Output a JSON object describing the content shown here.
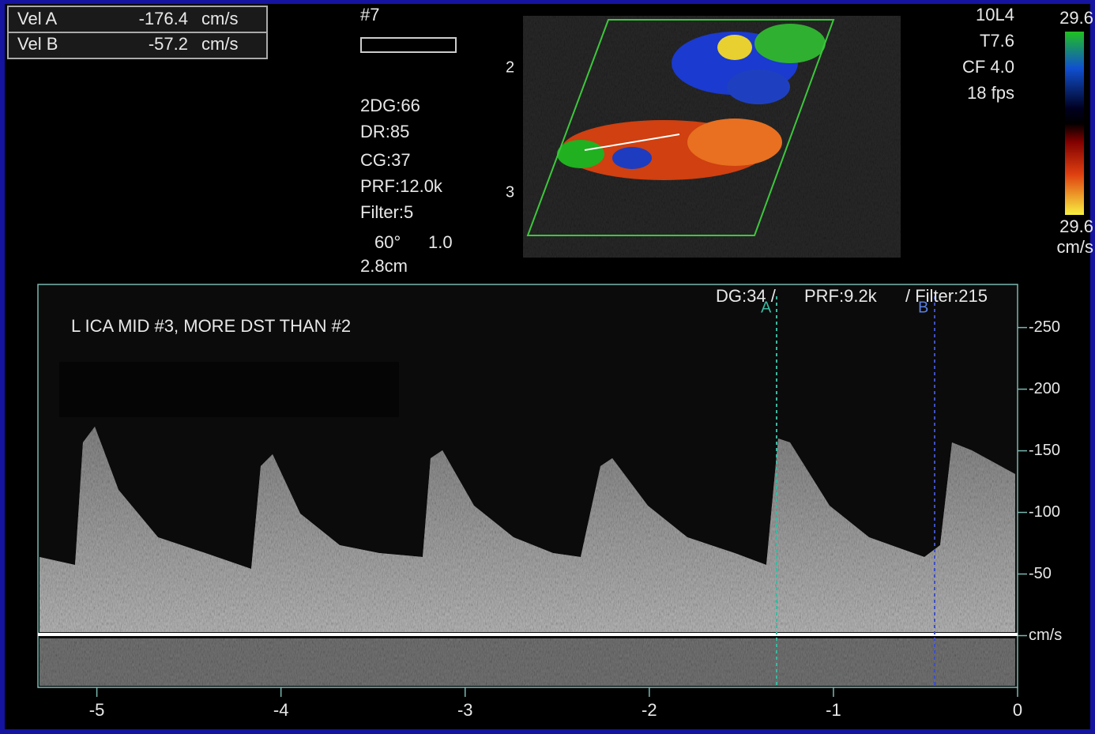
{
  "velocity_box": {
    "rows": [
      {
        "label": "Vel A",
        "value": -176.4,
        "unit": "cm/s"
      },
      {
        "label": "Vel B",
        "value": -57.2,
        "unit": "cm/s"
      }
    ]
  },
  "image_panel": {
    "frame": "#7",
    "settings": [
      "2DG:66",
      "DR:85",
      "CG:37",
      "PRF:12.0k",
      "Filter:5"
    ],
    "angle": "60°",
    "angle_scale": "1.0",
    "depth": "2.8cm",
    "markers": [
      "2",
      "3"
    ],
    "probe": [
      "10L4",
      "T7.6",
      "CF 4.0",
      "18 fps"
    ],
    "color_scale": {
      "top": "29.6",
      "bottom": "29.6",
      "unit": "cm/s"
    }
  },
  "spectral": {
    "annotation": "L ICA MID #3, MORE DST THAN #2",
    "settings": [
      "DG:34 /",
      "PRF:9.2k",
      "/ Filter:215"
    ],
    "cursors": [
      "A",
      "B"
    ],
    "ylim": [
      42,
      -285
    ],
    "yticks": [
      -250,
      -200,
      -150,
      -100,
      -50,
      {
        "value": 0,
        "label": "cm/s"
      }
    ],
    "xlim": [
      -5.32,
      0
    ],
    "xticks": [
      -5,
      -4,
      -3,
      -2,
      -1,
      0
    ]
  }
}
